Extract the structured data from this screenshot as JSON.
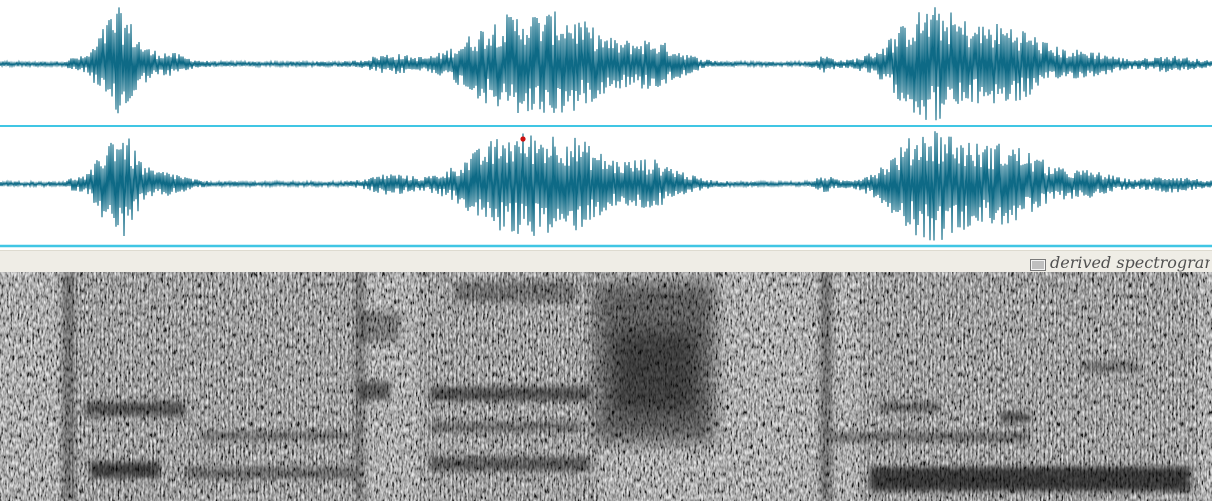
{
  "spectrogram_pane": {
    "label": "derived spectrogram",
    "icon": "spectrogram-icon"
  },
  "waveform_pane": {
    "channels": 2,
    "colors": {
      "waveform": "#0e6a86",
      "divider": "#40c6e4",
      "playhead_marker": "#cc1111",
      "header_background": "#efede6"
    }
  }
}
